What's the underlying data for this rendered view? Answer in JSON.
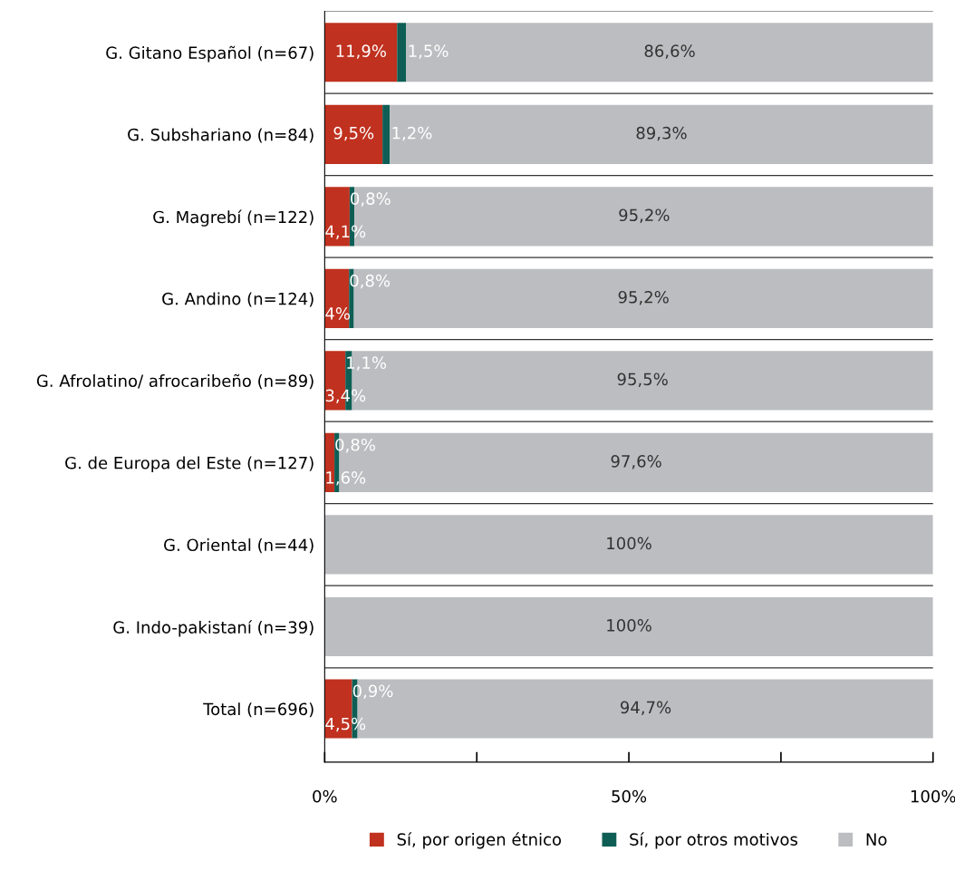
{
  "chart_data": {
    "type": "bar",
    "orientation": "horizontal",
    "stacked": true,
    "categories": [
      "G. Gitano Español (n=67)",
      "G. Subshariano (n=84)",
      "G. Magrebí (n=122)",
      "G. Andino (n=124)",
      "G. Afrolatino/ afrocaribeño (n=89)",
      "G. de Europa del Este (n=127)",
      "G. Oriental (n=44)",
      "G. Indo-pakistaní (n=39)",
      "Total (n=696)"
    ],
    "series": [
      {
        "name": "Sí, por origen étnico",
        "color": "#c0311f",
        "values": [
          11.9,
          9.5,
          4.1,
          4,
          3.4,
          1.6,
          0,
          0,
          4.5
        ],
        "value_labels": [
          "11,9%",
          "9,5%",
          "4,1%",
          "4%",
          "3,4%",
          "1,6%",
          null,
          null,
          "4,5%"
        ]
      },
      {
        "name": "Sí, por otros motivos",
        "color": "#0e5e55",
        "values": [
          1.5,
          1.2,
          0.8,
          0.8,
          1.1,
          0.8,
          0,
          0,
          0.9
        ],
        "value_labels": [
          "1,5%",
          "1,2%",
          "0,8%",
          "0,8%",
          "1,1%",
          "0,8%",
          null,
          null,
          "0,9%"
        ]
      },
      {
        "name": "No",
        "color": "#bcbdc0",
        "values": [
          86.6,
          89.3,
          95.2,
          95.2,
          95.5,
          97.6,
          100,
          100,
          94.7
        ],
        "value_labels": [
          "86,6%",
          "89,3%",
          "95,2%",
          "95,2%",
          "95,5%",
          "97,6%",
          "100%",
          "100%",
          "94,7%"
        ]
      }
    ],
    "xlim": [
      0,
      100
    ],
    "xticks": [
      {
        "value": 0,
        "label": "0%"
      },
      {
        "value": 25,
        "label": null
      },
      {
        "value": 50,
        "label": "50%"
      },
      {
        "value": 75,
        "label": null
      },
      {
        "value": 100,
        "label": "100%"
      }
    ],
    "grid": "y",
    "legend": "bottom"
  }
}
